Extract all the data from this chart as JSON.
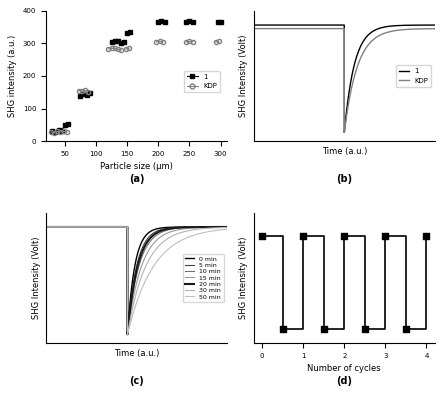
{
  "panel_a": {
    "title": "(a)",
    "xlabel": "Particle size (μm)",
    "ylabel": "SHG intensity (a.u.)",
    "ylim": [
      0,
      400
    ],
    "xlim": [
      20,
      310
    ],
    "compound1_groups": [
      {
        "x": [
          30,
          35,
          40,
          45,
          50,
          55
        ],
        "y": [
          30,
          28,
          35,
          32,
          50,
          52
        ]
      },
      {
        "x": [
          75,
          80,
          85,
          90
        ],
        "y": [
          140,
          145,
          142,
          148
        ]
      },
      {
        "x": [
          125,
          130,
          135,
          140,
          145
        ],
        "y": [
          303,
          306,
          308,
          300,
          305
        ]
      },
      {
        "x": [
          150,
          155
        ],
        "y": [
          333,
          336
        ]
      },
      {
        "x": [
          200,
          205,
          210
        ],
        "y": [
          367,
          368,
          365
        ]
      },
      {
        "x": [
          245,
          250,
          255
        ],
        "y": [
          367,
          368,
          365
        ]
      },
      {
        "x": [
          295,
          300
        ],
        "y": [
          367,
          365
        ]
      }
    ],
    "kdp_groups": [
      {
        "x": [
          28,
          33,
          38,
          43,
          48,
          53
        ],
        "y": [
          28,
          25,
          30,
          28,
          30,
          28
        ]
      },
      {
        "x": [
          72,
          77,
          82,
          87
        ],
        "y": [
          155,
          153,
          156,
          152
        ]
      },
      {
        "x": [
          120,
          125,
          130,
          135,
          140
        ],
        "y": [
          283,
          285,
          285,
          282,
          280
        ]
      },
      {
        "x": [
          148,
          153
        ],
        "y": [
          283,
          285
        ]
      },
      {
        "x": [
          197,
          202,
          207
        ],
        "y": [
          305,
          306,
          305
        ]
      },
      {
        "x": [
          245,
          250,
          255
        ],
        "y": [
          305,
          306,
          305
        ]
      },
      {
        "x": [
          292,
          297
        ],
        "y": [
          305,
          306
        ]
      }
    ],
    "legend_compound": "1",
    "legend_kdp": "KDP"
  },
  "panel_b": {
    "title": "(b)",
    "xlabel": "Time (a.u.)",
    "ylabel": "SHG Intensity (Volt)",
    "legend_compound": "1",
    "legend_kdp": "KDP"
  },
  "panel_c": {
    "title": "(c)",
    "xlabel": "Time (a.u.)",
    "ylabel": "SHG Intensity (Volt)",
    "legend_labels": [
      "0 min",
      "5 min",
      "10 min",
      "15 min",
      "20 min",
      "30 min",
      "50 min"
    ],
    "legend_grays": [
      0.0,
      0.25,
      0.45,
      0.6,
      0.1,
      0.7,
      0.75
    ]
  },
  "panel_d": {
    "title": "(d)",
    "xlabel": "Number of cycles",
    "ylabel": "SHG Intensity (Volt)",
    "xlim": [
      -0.2,
      4.2
    ],
    "xticks": [
      0,
      1,
      2,
      3,
      4
    ]
  }
}
